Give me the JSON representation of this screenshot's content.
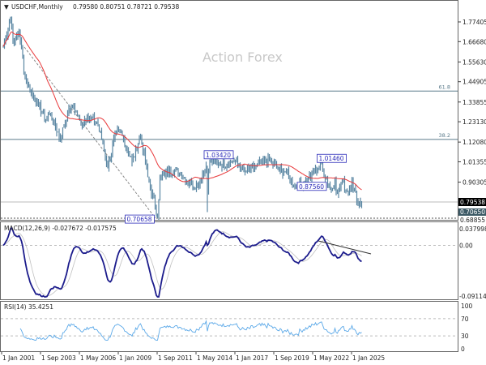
{
  "header": {
    "symbol": "USDCHF,Monthly",
    "ohlc": "0.79580 0.80751 0.78721 0.79538"
  },
  "watermark": "Action Forex",
  "price_axis": {
    "ticks": [
      "1.77405",
      "1.66680",
      "1.55630",
      "1.44905",
      "1.33855",
      "1.23130",
      "1.12080",
      "1.01355",
      "0.90305"
    ],
    "current_price": "0.79538",
    "low_marker": "0.70650",
    "bottom_label": "0.68855"
  },
  "fib_levels": [
    {
      "label": "61.8",
      "price": 1.398
    },
    {
      "label": "38.2",
      "price": 1.135
    }
  ],
  "annotations": [
    {
      "text": "1.03420",
      "date": "2015-01",
      "price": 1.0342
    },
    {
      "text": "1.01460",
      "date": "2022-10",
      "price": 1.0146
    },
    {
      "text": "0.87560",
      "date": "2021-01",
      "price": 0.8756
    },
    {
      "text": "0.70658",
      "date": "2011-08",
      "price": 0.70658
    }
  ],
  "macd": {
    "label": "MACD(12,26,9) -0.027672 -0.017575",
    "ticks": [
      "0.037998",
      "0.00",
      "-0.091147"
    ]
  },
  "rsi": {
    "label": "RSI(14) 35.4251",
    "ticks": [
      "100",
      "70",
      "30",
      "0"
    ]
  },
  "time_axis": [
    "1 Jan 2001",
    "1 Sep 2003",
    "1 May 2006",
    "1 Jan 2009",
    "1 Sep 2011",
    "1 May 2014",
    "1 Jan 2017",
    "1 Sep 2019",
    "1 May 2022",
    "1 Jan 2025"
  ],
  "colors": {
    "bars": "#5b87a3",
    "ma": "#e8383a",
    "macd": "#1c1c8c",
    "signal": "#c0c0c0",
    "rsi": "#5aa8e8",
    "annotation": "#2a2ab8"
  },
  "chart_data": {
    "type": "ohlc",
    "timeframe": "Monthly",
    "key_closes": [
      [
        "2001-01",
        1.64
      ],
      [
        "2001-07",
        1.8
      ],
      [
        "2001-10",
        1.65
      ],
      [
        "2002-02",
        1.73
      ],
      [
        "2002-07",
        1.47
      ],
      [
        "2003-01",
        1.38
      ],
      [
        "2003-06",
        1.32
      ],
      [
        "2003-12",
        1.24
      ],
      [
        "2004-03",
        1.28
      ],
      [
        "2004-12",
        1.14
      ],
      [
        "2005-06",
        1.28
      ],
      [
        "2005-11",
        1.32
      ],
      [
        "2006-05",
        1.22
      ],
      [
        "2006-10",
        1.26
      ],
      [
        "2007-06",
        1.23
      ],
      [
        "2007-11",
        1.12
      ],
      [
        "2008-03",
        0.98
      ],
      [
        "2008-10",
        1.18
      ],
      [
        "2009-03",
        1.16
      ],
      [
        "2009-11",
        1.01
      ],
      [
        "2010-06",
        1.16
      ],
      [
        "2010-12",
        0.93
      ],
      [
        "2011-08",
        0.72
      ],
      [
        "2011-10",
        0.92
      ],
      [
        "2012-06",
        0.97
      ],
      [
        "2013-03",
        0.95
      ],
      [
        "2013-12",
        0.89
      ],
      [
        "2014-05",
        0.89
      ],
      [
        "2014-12",
        0.99
      ],
      [
        "2015-01",
        0.86
      ],
      [
        "2015-03",
        1.02
      ],
      [
        "2015-12",
        1.0
      ],
      [
        "2016-12",
        1.02
      ],
      [
        "2017-05",
        0.97
      ],
      [
        "2017-09",
        0.96
      ],
      [
        "2018-04",
        0.99
      ],
      [
        "2019-04",
        1.02
      ],
      [
        "2019-12",
        0.97
      ],
      [
        "2020-05",
        0.96
      ],
      [
        "2021-01",
        0.88
      ],
      [
        "2021-12",
        0.92
      ],
      [
        "2022-10",
        1.0
      ],
      [
        "2023-07",
        0.86
      ],
      [
        "2023-10",
        0.91
      ],
      [
        "2023-12",
        0.84
      ],
      [
        "2024-04",
        0.91
      ],
      [
        "2024-08",
        0.85
      ],
      [
        "2024-12",
        0.91
      ],
      [
        "2025-04",
        0.8
      ],
      [
        "2025-08",
        0.795
      ]
    ],
    "ylim": [
      0.68855,
      1.85
    ],
    "rsi_levels": [
      30,
      70
    ],
    "macd_ylim": [
      -0.091147,
      0.037998
    ]
  }
}
